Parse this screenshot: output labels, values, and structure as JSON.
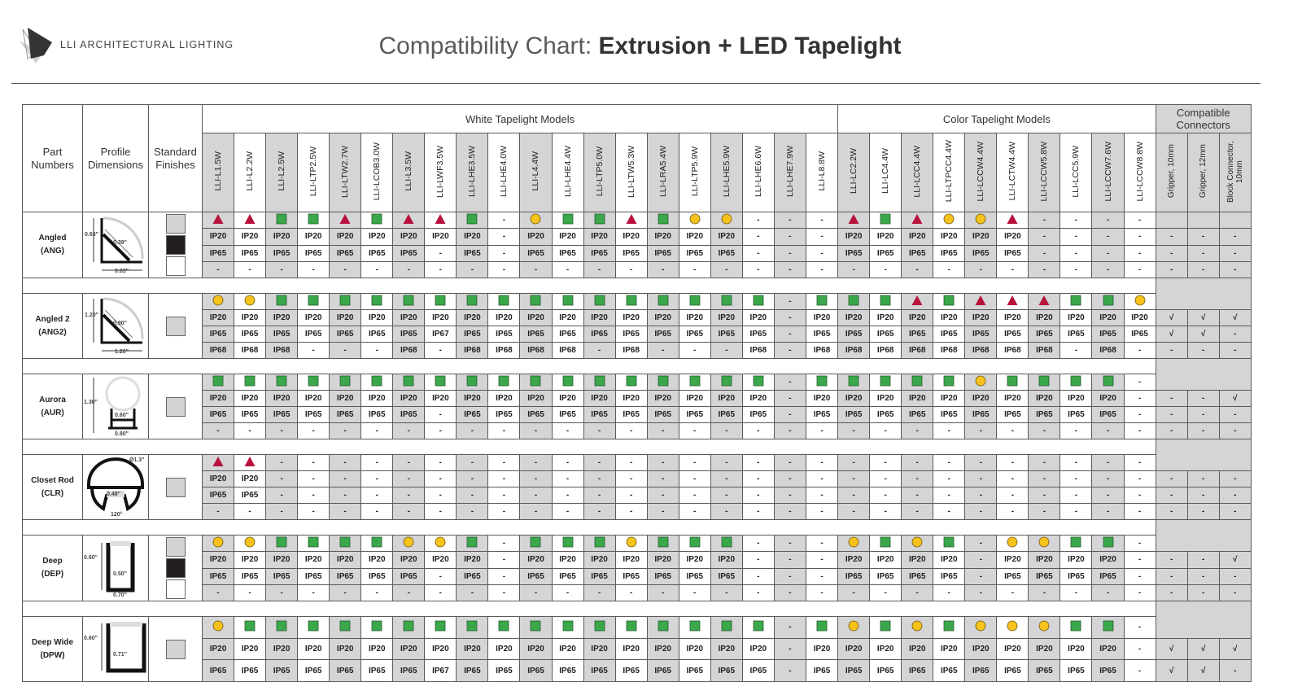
{
  "logo": {
    "text": "LLI ARCHITECTURAL LIGHTING"
  },
  "title": {
    "prefix": "Compatibility Chart: ",
    "bold": "Extrusion + LED Tapelight"
  },
  "table": {
    "headers": {
      "part": "Part Numbers",
      "profile": "Profile Dimensions",
      "finishes": "Standard Finishes",
      "white_group": "White Tapelight Models",
      "color_group": "Color Tapelight Models",
      "connector_group": "Compatible Connectors"
    },
    "white_models": [
      "LLI-L1.5W",
      "LLI-L2.2W",
      "LLI-L2.5W",
      "LLI-LTP2.5W",
      "LLI-LTW2.7W",
      "LLI-LCOB3.0W",
      "LLI-L3.5W",
      "LLI-LWF3.5W",
      "LLI-LHE3.5W",
      "LLI-LHE4.0W",
      "LLI-L4.4W",
      "LLI-LHE4.4W",
      "LLI-LTP5.0W",
      "LLI-LTW5.3W",
      "LLI-LRA5.4W",
      "LLI-LTP5.9W",
      "LLI-LHE5.9W",
      "LLI-LHE6.6W",
      "LLI-LHE7.9W",
      "LLI-L8.8W"
    ],
    "color_models": [
      "LLI-LC2.2W",
      "LLI-LC4.4W",
      "LLI-LCC4.4W",
      "LLI-LTPCC4.4W",
      "LLI-LCCW4.4W",
      "LLI-LCTW4.4W",
      "LLI-LCCW5.8W",
      "LLI-LCC5.9W",
      "LLI-LCCW7.6W",
      "LLI-LCCW8.8W"
    ],
    "connectors": [
      "Gripper, 10mm",
      "Gripper, 12mm",
      "Block Connector, 10mm"
    ]
  },
  "symbol_colors": {
    "tri": "#b8123c",
    "sq": "#3aa84a",
    "circ": "#f6c21c"
  },
  "finish_colors": {
    "silver": "#d3d3d5",
    "black": "#231f20",
    "white": "#ffffff"
  },
  "sections": [
    {
      "name": "Angled",
      "code": "(ANG)",
      "profile": "angled",
      "dims": [
        "0.63\"",
        "0.39\"",
        "0.63\""
      ],
      "finishes": [
        "silver",
        "black",
        "white"
      ],
      "white": [
        [
          "tri",
          "tri",
          "sq",
          "sq",
          "tri",
          "sq",
          "tri",
          "tri",
          "sq",
          "-",
          "circ",
          "sq",
          "sq",
          "tri",
          "sq",
          "circ",
          "circ",
          "-",
          "-",
          "-"
        ],
        [
          "IP20",
          "IP20",
          "IP20",
          "IP20",
          "IP20",
          "IP20",
          "IP20",
          "IP20",
          "IP20",
          "-",
          "IP20",
          "IP20",
          "IP20",
          "IP20",
          "IP20",
          "IP20",
          "IP20",
          "-",
          "-",
          "-"
        ],
        [
          "IP65",
          "IP65",
          "IP65",
          "IP65",
          "IP65",
          "IP65",
          "IP65",
          "-",
          "IP65",
          "-",
          "IP65",
          "IP65",
          "IP65",
          "IP65",
          "IP65",
          "IP65",
          "IP65",
          "-",
          "-",
          "-"
        ],
        [
          "-",
          "-",
          "-",
          "-",
          "-",
          "-",
          "-",
          "-",
          "-",
          "-",
          "-",
          "-",
          "-",
          "-",
          "-",
          "-",
          "-",
          "-",
          "-",
          "-"
        ]
      ],
      "color": [
        [
          "tri",
          "sq",
          "tri",
          "circ",
          "circ",
          "tri",
          "-",
          "-",
          "-",
          "-"
        ],
        [
          "IP20",
          "IP20",
          "IP20",
          "IP20",
          "IP20",
          "IP20",
          "-",
          "-",
          "-",
          "-"
        ],
        [
          "IP65",
          "IP65",
          "IP65",
          "IP65",
          "IP65",
          "IP65",
          "-",
          "-",
          "-",
          "-"
        ],
        [
          "-",
          "-",
          "-",
          "-",
          "-",
          "-",
          "-",
          "-",
          "-",
          "-"
        ]
      ],
      "connectors": [
        [
          "-",
          "-",
          "-"
        ],
        [
          "-",
          "-",
          "-"
        ],
        [
          "-",
          "-",
          "-"
        ]
      ]
    },
    {
      "name": "Angled 2",
      "code": "(ANG2)",
      "profile": "angled",
      "dims": [
        "1.20\"",
        "0.90\"",
        "1.20\""
      ],
      "finishes": [
        "silver"
      ],
      "white": [
        [
          "circ",
          "circ",
          "sq",
          "sq",
          "sq",
          "sq",
          "sq",
          "sq",
          "sq",
          "sq",
          "sq",
          "sq",
          "sq",
          "sq",
          "sq",
          "sq",
          "sq",
          "sq",
          "-",
          "sq"
        ],
        [
          "IP20",
          "IP20",
          "IP20",
          "IP20",
          "IP20",
          "IP20",
          "IP20",
          "IP20",
          "IP20",
          "IP20",
          "IP20",
          "IP20",
          "IP20",
          "IP20",
          "IP20",
          "IP20",
          "IP20",
          "IP20",
          "-",
          "IP20"
        ],
        [
          "IP65",
          "IP65",
          "IP65",
          "IP65",
          "IP65",
          "IP65",
          "IP65",
          "IP67",
          "IP65",
          "IP65",
          "IP65",
          "IP65",
          "IP65",
          "IP65",
          "IP65",
          "IP65",
          "IP65",
          "IP65",
          "-",
          "IP65"
        ],
        [
          "IP68",
          "IP68",
          "IP68",
          "-",
          "-",
          "-",
          "IP68",
          "-",
          "IP68",
          "IP68",
          "IP68",
          "IP68",
          "-",
          "IP68",
          "-",
          "-",
          "-",
          "IP68",
          "-",
          "IP68"
        ]
      ],
      "color": [
        [
          "sq",
          "sq",
          "tri",
          "sq",
          "tri",
          "tri",
          "tri",
          "sq",
          "sq",
          "circ"
        ],
        [
          "IP20",
          "IP20",
          "IP20",
          "IP20",
          "IP20",
          "IP20",
          "IP20",
          "IP20",
          "IP20",
          "IP20"
        ],
        [
          "IP65",
          "IP65",
          "IP65",
          "IP65",
          "IP65",
          "IP65",
          "IP65",
          "IP65",
          "IP65",
          "IP65"
        ],
        [
          "IP68",
          "IP68",
          "IP68",
          "IP68",
          "IP68",
          "IP68",
          "IP68",
          "-",
          "IP68",
          "-"
        ]
      ],
      "connectors": [
        [
          "√",
          "√",
          "√"
        ],
        [
          "√",
          "√",
          "-"
        ],
        [
          "-",
          "-",
          "-"
        ]
      ]
    },
    {
      "name": "Aurora",
      "code": "(AUR)",
      "profile": "aurora",
      "dims": [
        "1.30\"",
        "0.60\"",
        "0.80\""
      ],
      "finishes": [
        "silver"
      ],
      "white": [
        [
          "sq",
          "sq",
          "sq",
          "sq",
          "sq",
          "sq",
          "sq",
          "sq",
          "sq",
          "sq",
          "sq",
          "sq",
          "sq",
          "sq",
          "sq",
          "sq",
          "sq",
          "sq",
          "-",
          "sq"
        ],
        [
          "IP20",
          "IP20",
          "IP20",
          "IP20",
          "IP20",
          "IP20",
          "IP20",
          "IP20",
          "IP20",
          "IP20",
          "IP20",
          "IP20",
          "IP20",
          "IP20",
          "IP20",
          "IP20",
          "IP20",
          "IP20",
          "-",
          "IP20"
        ],
        [
          "IP65",
          "IP65",
          "IP65",
          "IP65",
          "IP65",
          "IP65",
          "IP65",
          "-",
          "IP65",
          "IP65",
          "IP65",
          "IP65",
          "IP65",
          "IP65",
          "IP65",
          "IP65",
          "IP65",
          "IP65",
          "-",
          "IP65"
        ],
        [
          "-",
          "-",
          "-",
          "-",
          "-",
          "-",
          "-",
          "-",
          "-",
          "-",
          "-",
          "-",
          "-",
          "-",
          "-",
          "-",
          "-",
          "-",
          "-",
          "-"
        ]
      ],
      "color": [
        [
          "sq",
          "sq",
          "sq",
          "sq",
          "circ",
          "sq",
          "sq",
          "sq",
          "sq",
          "-"
        ],
        [
          "IP20",
          "IP20",
          "IP20",
          "IP20",
          "IP20",
          "IP20",
          "IP20",
          "IP20",
          "IP20",
          "-"
        ],
        [
          "IP65",
          "IP65",
          "IP65",
          "IP65",
          "IP65",
          "IP65",
          "IP65",
          "IP65",
          "IP65",
          "-"
        ],
        [
          "-",
          "-",
          "-",
          "-",
          "-",
          "-",
          "-",
          "-",
          "-",
          "-"
        ]
      ],
      "connectors": [
        [
          "-",
          "-",
          "√"
        ],
        [
          "-",
          "-",
          "-"
        ],
        [
          "-",
          "-",
          "-"
        ]
      ]
    },
    {
      "name": "Closet Rod",
      "code": "(CLR)",
      "profile": "closet",
      "dims": [
        "Ø1.3\"",
        "0.48\"",
        "120°"
      ],
      "finishes": [
        "silver"
      ],
      "white": [
        [
          "tri",
          "tri",
          "-",
          "-",
          "-",
          "-",
          "-",
          "-",
          "-",
          "-",
          "-",
          "-",
          "-",
          "-",
          "-",
          "-",
          "-",
          "-",
          "-",
          "-"
        ],
        [
          "IP20",
          "IP20",
          "-",
          "-",
          "-",
          "-",
          "-",
          "-",
          "-",
          "-",
          "-",
          "-",
          "-",
          "-",
          "-",
          "-",
          "-",
          "-",
          "-",
          "-"
        ],
        [
          "IP65",
          "IP65",
          "-",
          "-",
          "-",
          "-",
          "-",
          "-",
          "-",
          "-",
          "-",
          "-",
          "-",
          "-",
          "-",
          "-",
          "-",
          "-",
          "-",
          "-"
        ],
        [
          "-",
          "-",
          "-",
          "-",
          "-",
          "-",
          "-",
          "-",
          "-",
          "-",
          "-",
          "-",
          "-",
          "-",
          "-",
          "-",
          "-",
          "-",
          "-",
          "-"
        ]
      ],
      "color": [
        [
          "-",
          "-",
          "-",
          "-",
          "-",
          "-",
          "-",
          "-",
          "-",
          "-"
        ],
        [
          "-",
          "-",
          "-",
          "-",
          "-",
          "-",
          "-",
          "-",
          "-",
          "-"
        ],
        [
          "-",
          "-",
          "-",
          "-",
          "-",
          "-",
          "-",
          "-",
          "-",
          "-"
        ],
        [
          "-",
          "-",
          "-",
          "-",
          "-",
          "-",
          "-",
          "-",
          "-",
          "-"
        ]
      ],
      "connectors": [
        [
          "-",
          "-",
          "-"
        ],
        [
          "-",
          "-",
          "-"
        ],
        [
          "-",
          "-",
          "-"
        ]
      ]
    },
    {
      "name": "Deep",
      "code": "(DEP)",
      "profile": "deep",
      "dims": [
        "0.60\"",
        "0.50\"",
        "0.70\""
      ],
      "finishes": [
        "silver",
        "black",
        "white"
      ],
      "white": [
        [
          "circ",
          "circ",
          "sq",
          "sq",
          "sq",
          "sq",
          "circ",
          "circ",
          "sq",
          "-",
          "sq",
          "sq",
          "sq",
          "circ",
          "sq",
          "sq",
          "sq",
          "-",
          "-",
          "-"
        ],
        [
          "IP20",
          "IP20",
          "IP20",
          "IP20",
          "IP20",
          "IP20",
          "IP20",
          "IP20",
          "IP20",
          "-",
          "IP20",
          "IP20",
          "IP20",
          "IP20",
          "IP20",
          "IP20",
          "IP20",
          "-",
          "-",
          "-"
        ],
        [
          "IP65",
          "IP65",
          "IP65",
          "IP65",
          "IP65",
          "IP65",
          "IP65",
          "-",
          "IP65",
          "-",
          "IP65",
          "IP65",
          "IP65",
          "IP65",
          "IP65",
          "IP65",
          "IP65",
          "-",
          "-",
          "-"
        ],
        [
          "-",
          "-",
          "-",
          "-",
          "-",
          "-",
          "-",
          "-",
          "-",
          "-",
          "-",
          "-",
          "-",
          "-",
          "-",
          "-",
          "-",
          "-",
          "-",
          "-"
        ]
      ],
      "color": [
        [
          "circ",
          "sq",
          "circ",
          "sq",
          "-",
          "circ",
          "circ",
          "sq",
          "sq",
          "-"
        ],
        [
          "IP20",
          "IP20",
          "IP20",
          "IP20",
          "-",
          "IP20",
          "IP20",
          "IP20",
          "IP20",
          "-"
        ],
        [
          "IP65",
          "IP65",
          "IP65",
          "IP65",
          "-",
          "IP65",
          "IP65",
          "IP65",
          "IP65",
          "-"
        ],
        [
          "-",
          "-",
          "-",
          "-",
          "-",
          "-",
          "-",
          "-",
          "-",
          "-"
        ]
      ],
      "connectors": [
        [
          "-",
          "-",
          "√"
        ],
        [
          "-",
          "-",
          "-"
        ],
        [
          "-",
          "-",
          "-"
        ]
      ]
    },
    {
      "name": "Deep Wide",
      "code": "(DPW)",
      "profile": "deepwide",
      "dims": [
        "0.60\"",
        "0.71\""
      ],
      "finishes": [
        "silver"
      ],
      "white": [
        [
          "circ",
          "sq",
          "sq",
          "sq",
          "sq",
          "sq",
          "sq",
          "sq",
          "sq",
          "sq",
          "sq",
          "sq",
          "sq",
          "sq",
          "sq",
          "sq",
          "sq",
          "sq",
          "-",
          "sq"
        ],
        [
          "IP20",
          "IP20",
          "IP20",
          "IP20",
          "IP20",
          "IP20",
          "IP20",
          "IP20",
          "IP20",
          "IP20",
          "IP20",
          "IP20",
          "IP20",
          "IP20",
          "IP20",
          "IP20",
          "IP20",
          "IP20",
          "-",
          "IP20"
        ],
        [
          "IP65",
          "IP65",
          "IP65",
          "IP65",
          "IP65",
          "IP65",
          "IP65",
          "IP67",
          "IP65",
          "IP65",
          "IP65",
          "IP65",
          "IP65",
          "IP65",
          "IP65",
          "IP65",
          "IP65",
          "IP65",
          "-",
          "IP65"
        ]
      ],
      "color": [
        [
          "circ",
          "sq",
          "circ",
          "sq",
          "circ",
          "circ",
          "circ",
          "sq",
          "sq",
          "-"
        ],
        [
          "IP20",
          "IP20",
          "IP20",
          "IP20",
          "IP20",
          "IP20",
          "IP20",
          "IP20",
          "IP20",
          "-"
        ],
        [
          "IP65",
          "IP65",
          "IP65",
          "IP65",
          "IP65",
          "IP65",
          "IP65",
          "IP65",
          "IP65",
          "-"
        ]
      ],
      "connectors": [
        [
          "√",
          "√",
          "√"
        ],
        [
          "√",
          "√",
          "-"
        ]
      ]
    }
  ]
}
